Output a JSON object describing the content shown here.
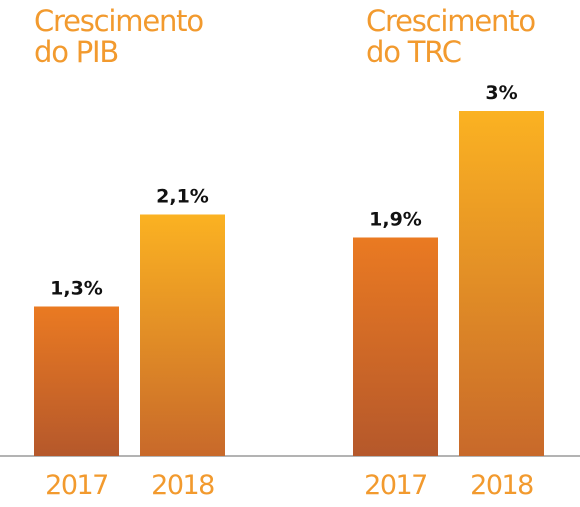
{
  "chart_data": [
    {
      "type": "bar",
      "title_lines": [
        "Crescimento",
        "do PIB"
      ],
      "categories": [
        "2017",
        "2018"
      ],
      "values": [
        1.3,
        2.1
      ],
      "value_labels": [
        "1,3%",
        "2,1%"
      ],
      "unit": "%",
      "ylim": [
        0,
        3.0
      ],
      "grid": false,
      "legend": "none",
      "xlabel": "",
      "ylabel": ""
    },
    {
      "type": "bar",
      "title_lines": [
        "Crescimento",
        "do TRC"
      ],
      "categories": [
        "2017",
        "2018"
      ],
      "values": [
        1.9,
        3.0
      ],
      "value_labels": [
        "1,9%",
        "3%"
      ],
      "unit": "%",
      "ylim": [
        0,
        3.0
      ],
      "grid": false,
      "legend": "none",
      "xlabel": "",
      "ylabel": ""
    }
  ],
  "colors": {
    "title": "#f29a2e",
    "tick_label": "#f29a2e",
    "value_label": "#111111",
    "axis_line": "#9a9a9a",
    "bar_2017_top": "#ea7a22",
    "bar_2017_bottom": "#b5582b",
    "bar_2018_top": "#fbb222",
    "bar_2018_bottom": "#c8692a"
  }
}
